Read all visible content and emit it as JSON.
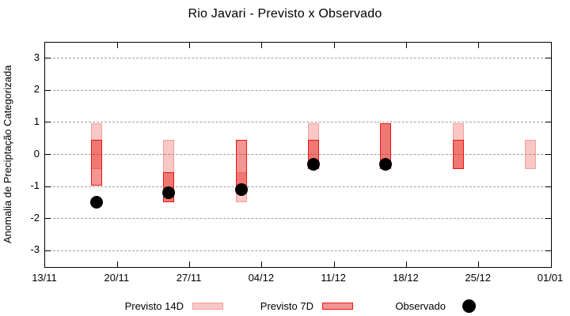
{
  "chart_data": {
    "type": "range-bar",
    "title": "Rio Javari - Previsto x Observado",
    "ylabel": "Anomalia de Preciptação Categorizada",
    "xlabel": "",
    "ylim": [
      -3.5,
      3.5
    ],
    "y_ticks": [
      3,
      2,
      1,
      0,
      -1,
      -2,
      -3
    ],
    "x_axis_days": [
      0,
      7,
      14,
      21,
      28,
      35,
      42,
      49
    ],
    "x_tick_labels": [
      "13/11",
      "20/11",
      "27/11",
      "04/12",
      "11/12",
      "18/12",
      "25/12",
      "01/01"
    ],
    "grid": "horizontal-dashed",
    "legend_position": "bottom",
    "bars": [
      {
        "date": "18/11",
        "day_offset": 5,
        "previsto_14d": [
          -0.45,
          0.97
        ],
        "previsto_7d": [
          -0.97,
          0.45
        ],
        "observado": -1.5
      },
      {
        "date": "25/11",
        "day_offset": 12,
        "previsto_14d": [
          -1.5,
          0.45
        ],
        "previsto_7d": [
          -1.5,
          -0.55
        ],
        "observado": -1.2
      },
      {
        "date": "02/12",
        "day_offset": 19,
        "previsto_14d": [
          -1.5,
          -0.55
        ],
        "previsto_7d": [
          -0.97,
          0.45
        ],
        "observado": -1.1
      },
      {
        "date": "09/12",
        "day_offset": 26,
        "previsto_14d": [
          -0.45,
          0.97
        ],
        "previsto_7d": [
          -0.45,
          0.45
        ],
        "observado": -0.3
      },
      {
        "date": "16/12",
        "day_offset": 33,
        "previsto_14d": [
          -0.45,
          0.97
        ],
        "previsto_7d": [
          -0.45,
          0.97
        ],
        "observado": -0.3
      },
      {
        "date": "23/12",
        "day_offset": 40,
        "previsto_14d": [
          -0.45,
          0.97
        ],
        "previsto_7d": [
          -0.45,
          0.45
        ],
        "observado": null
      },
      {
        "date": "30/12",
        "day_offset": 47,
        "previsto_14d": [
          -0.45,
          0.45
        ],
        "previsto_7d": null,
        "observado": null
      }
    ],
    "legend": [
      {
        "label": "Previsto 14D",
        "swatch": "previsto-14d"
      },
      {
        "label": "Previsto 7D",
        "swatch": "previsto-7d"
      },
      {
        "label": "Observado",
        "swatch": "observado-dot"
      }
    ],
    "colors": {
      "bar_fill_rgb": "230,30,25",
      "alpha_14d": 0.25,
      "alpha_7d": 0.47,
      "border_14d": "#f2a19b",
      "border_7d": "#e8190f",
      "observado": "#000000",
      "grid": "#9e9e9e",
      "axis": "#000000"
    }
  }
}
